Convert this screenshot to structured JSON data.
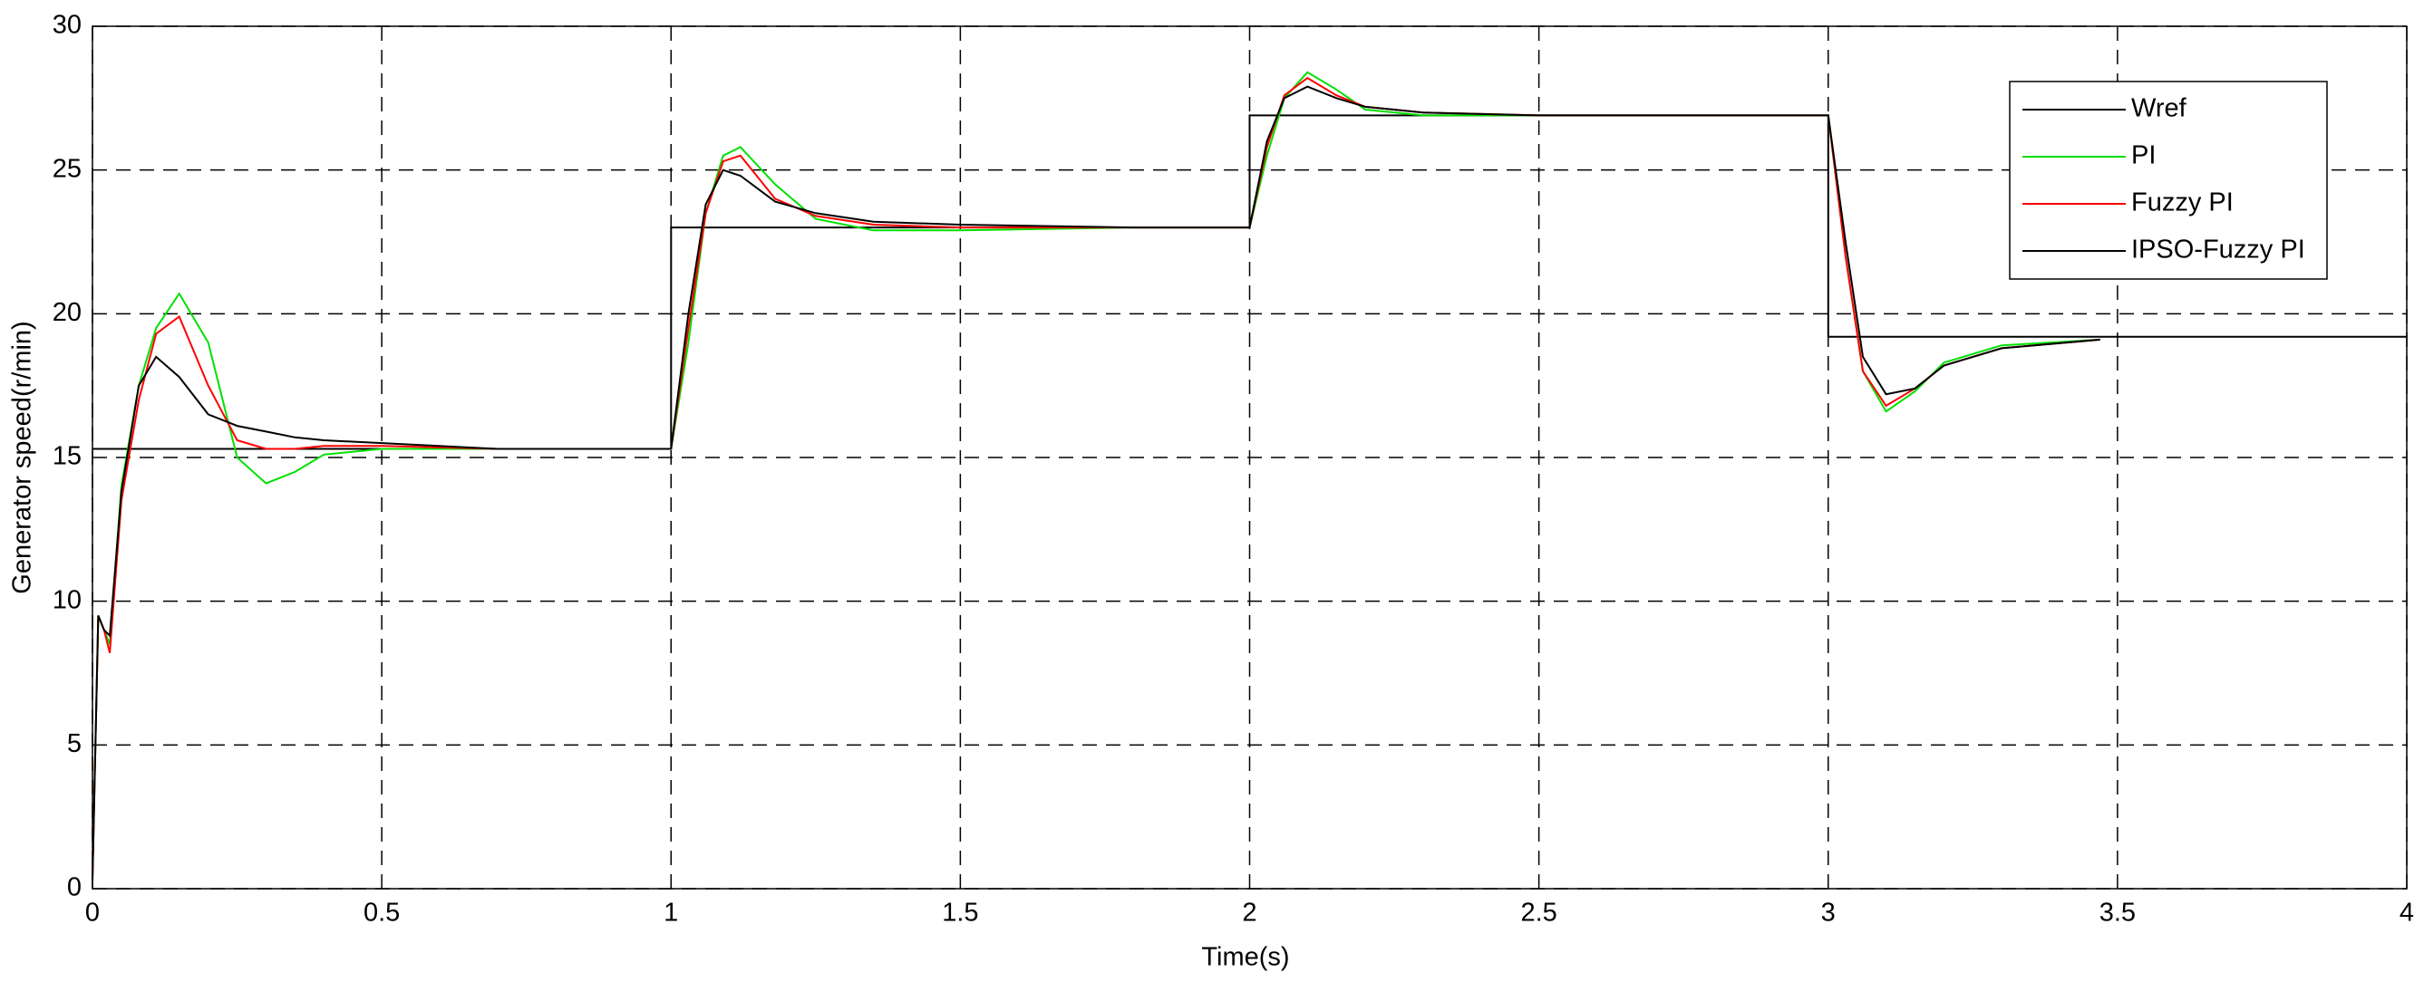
{
  "chart_data": {
    "type": "line",
    "x_label": "Time(s)",
    "y_label": "Generator speed(r/min)",
    "x": [
      0,
      0.01,
      0.02,
      0.03,
      0.05,
      0.08,
      0.11,
      0.15,
      0.2,
      0.25,
      0.3,
      0.35,
      0.4,
      0.5,
      0.7,
      1,
      1,
      1.03,
      1.06,
      1.09,
      1.12,
      1.18,
      1.25,
      1.35,
      1.5,
      1.8,
      2,
      2,
      2.03,
      2.06,
      2.1,
      2.15,
      2.2,
      2.3,
      2.5,
      3,
      3,
      3.03,
      3.06,
      3.1,
      3.15,
      3.2,
      3.3,
      3.47,
      4
    ],
    "series": [
      {
        "name": "Wref",
        "color": "#000000",
        "values": [
          15.3,
          15.3,
          15.3,
          15.3,
          15.3,
          15.3,
          15.3,
          15.3,
          15.3,
          15.3,
          15.3,
          15.3,
          15.3,
          15.3,
          15.3,
          15.3,
          23,
          23,
          23,
          23,
          23,
          23,
          23,
          23,
          23,
          23,
          23,
          26.9,
          26.9,
          26.9,
          26.9,
          26.9,
          26.9,
          26.9,
          26.9,
          26.9,
          19.2,
          19.2,
          19.2,
          19.2,
          19.2,
          19.2,
          19.2,
          19.2,
          19.2
        ]
      },
      {
        "name": "PI",
        "color": "#00e000",
        "values": [
          0.3,
          9.5,
          9,
          8.5,
          14,
          17.5,
          19.5,
          20.7,
          19,
          15,
          14.1,
          14.5,
          15.1,
          15.3,
          15.3,
          15.3,
          15.3,
          19,
          23.5,
          25.5,
          25.8,
          24.5,
          23.3,
          22.9,
          22.9,
          23,
          23,
          23,
          25.5,
          27.5,
          28.4,
          27.8,
          27.1,
          26.9,
          26.9,
          26.9,
          26.9,
          22,
          18,
          16.6,
          17.3,
          18.3,
          18.9,
          19.1,
          null
        ]
      },
      {
        "name": "Fuzzy PI",
        "color": "#ff0000",
        "values": [
          0.3,
          9.5,
          9,
          8.2,
          13.5,
          17,
          19.3,
          19.9,
          17.5,
          15.6,
          15.3,
          15.3,
          15.4,
          15.4,
          15.3,
          15.3,
          15.3,
          19.5,
          23.5,
          25.3,
          25.5,
          24,
          23.4,
          23.1,
          23,
          23,
          23,
          23,
          25.8,
          27.6,
          28.2,
          27.6,
          27.2,
          27,
          26.9,
          26.9,
          26.9,
          22,
          18,
          16.8,
          17.4,
          18.2,
          18.8,
          19.1,
          null
        ]
      },
      {
        "name": "IPSO-Fuzzy PI",
        "color": "#000000",
        "values": [
          0.3,
          9.5,
          9,
          8.8,
          13.8,
          17.5,
          18.5,
          17.8,
          16.5,
          16.1,
          15.9,
          15.7,
          15.6,
          15.5,
          15.3,
          15.3,
          15.3,
          20,
          23.8,
          25,
          24.8,
          23.9,
          23.5,
          23.2,
          23.1,
          23,
          23,
          23,
          26,
          27.5,
          27.9,
          27.5,
          27.2,
          27,
          26.9,
          26.9,
          26.9,
          22.5,
          18.5,
          17.2,
          17.4,
          18.2,
          18.8,
          19.1,
          null
        ]
      }
    ],
    "xlim": [
      0,
      4
    ],
    "xticks": [
      0,
      0.5,
      1,
      1.5,
      2,
      2.5,
      3,
      3.5,
      4
    ],
    "ylim": [
      0,
      30
    ],
    "yticks": [
      0,
      5,
      10,
      15,
      20,
      25,
      30
    ],
    "grid": true,
    "legend": "top-right"
  }
}
